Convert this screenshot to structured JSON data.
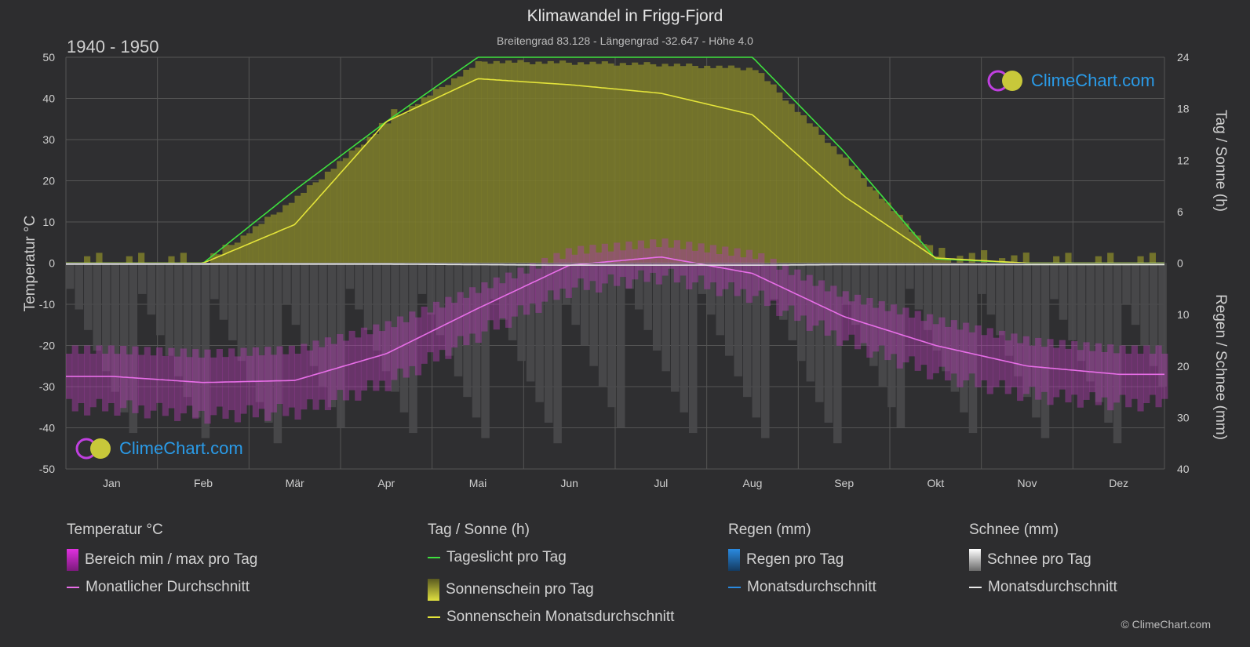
{
  "header": {
    "title": "Klimawandel in Frigg-Fjord",
    "subtitle": "Breitengrad 83.128 - Längengrad -32.647 - Höhe 4.0",
    "period": "1940 - 1950"
  },
  "axes": {
    "left_label": "Temperatur °C",
    "right_top_label": "Tag / Sonne (h)",
    "right_bottom_label": "Regen / Schnee (mm)",
    "left_ticks": [
      "50",
      "40",
      "30",
      "20",
      "10",
      "0",
      "-10",
      "-20",
      "-30",
      "-40",
      "-50"
    ],
    "right_top_ticks": [
      "24",
      "18",
      "12",
      "6",
      "0"
    ],
    "right_bottom_ticks": [
      "10",
      "20",
      "30",
      "40"
    ],
    "months": [
      "Jan",
      "Feb",
      "Mär",
      "Apr",
      "Mai",
      "Jun",
      "Jul",
      "Aug",
      "Sep",
      "Okt",
      "Nov",
      "Dez"
    ]
  },
  "logo": {
    "text": "ClimeChart.com"
  },
  "legend": {
    "temp": {
      "head": "Temperatur °C",
      "range": "Bereich min / max pro Tag",
      "avg": "Monatlicher Durchschnitt"
    },
    "sun": {
      "head": "Tag / Sonne (h)",
      "daylight": "Tageslicht pro Tag",
      "sunshine": "Sonnenschein pro Tag",
      "sun_avg": "Sonnenschein Monatsdurchschnitt"
    },
    "rain": {
      "head": "Regen (mm)",
      "rain_day": "Regen pro Tag",
      "rain_avg": "Monatsdurchschnitt"
    },
    "snow": {
      "head": "Schnee (mm)",
      "snow_day": "Schnee pro Tag",
      "snow_avg": "Monatsdurchschnitt"
    }
  },
  "copyright": "© ClimeChart.com",
  "colors": {
    "temp_avg": "#e86ee8",
    "temp_range": "#c83cc8",
    "daylight": "#3ee03e",
    "sunshine_fill": "#8a8a2c",
    "sun_avg": "#e4e43a",
    "rain": "#2a8ae0",
    "snow": "#e8e8e8",
    "grid": "#555"
  },
  "chart_data": {
    "type": "line",
    "x": [
      "Jan",
      "Feb",
      "Mär",
      "Apr",
      "Mai",
      "Jun",
      "Jul",
      "Aug",
      "Sep",
      "Okt",
      "Nov",
      "Dez"
    ],
    "ylim_left": [
      -50,
      50
    ],
    "ylim_right_top": [
      0,
      24
    ],
    "ylim_right_bottom": [
      0,
      40
    ],
    "series": [
      {
        "name": "Monatlicher Durchschnitt",
        "axis": "temp",
        "values": [
          -27.5,
          -29,
          -28.5,
          -22,
          -11,
          -0.5,
          1.5,
          -2.5,
          -13,
          -20,
          -25,
          -27
        ]
      },
      {
        "name": "Tageslicht pro Tag",
        "axis": "sun",
        "values": [
          0,
          0,
          8.5,
          16.5,
          24,
          24,
          24,
          24,
          13,
          0.5,
          0,
          0
        ]
      },
      {
        "name": "Sonnenschein Monatsdurchschnitt",
        "axis": "sun",
        "values": [
          0,
          0,
          4.5,
          16.5,
          21.5,
          20.8,
          19.8,
          17.3,
          7.8,
          0.6,
          0,
          0
        ]
      },
      {
        "name": "Schnee Monatsdurchschnitt",
        "axis": "precip",
        "values": [
          0.2,
          0.2,
          0.2,
          0.2,
          0.3,
          0.4,
          0.4,
          0.4,
          0.3,
          0.3,
          0.3,
          0.3
        ]
      }
    ],
    "temp_range_min": [
      -33,
      -35,
      -34,
      -27,
      -15,
      -4,
      -1,
      -6,
      -17,
      -25,
      -30,
      -32
    ],
    "temp_range_max": [
      -22,
      -23,
      -22,
      -16,
      -7,
      2,
      4,
      1,
      -9,
      -15,
      -20,
      -22
    ]
  }
}
